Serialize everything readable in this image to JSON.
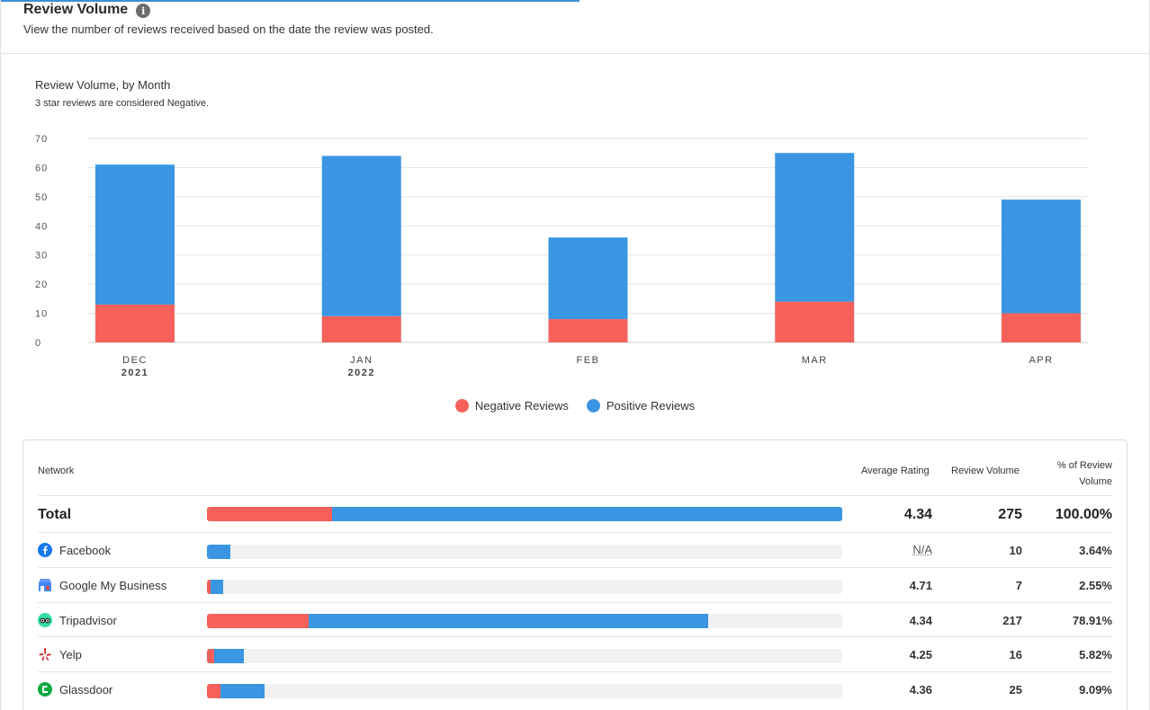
{
  "header": {
    "title": "Review Volume",
    "info_icon": "info-icon",
    "subtitle": "View the number of reviews received based on the date the review was posted."
  },
  "chart": {
    "title": "Review Volume, by Month",
    "note": "3 star reviews are considered Negative."
  },
  "chart_data": {
    "type": "bar",
    "stacked": true,
    "categories": [
      "DEC",
      "JAN",
      "FEB",
      "MAR",
      "APR"
    ],
    "category_years": [
      "2021",
      "2022",
      "",
      "",
      ""
    ],
    "series": [
      {
        "name": "Negative Reviews",
        "color": "#f5615a",
        "values": [
          13,
          9,
          8,
          14,
          10
        ]
      },
      {
        "name": "Positive Reviews",
        "color": "#3a96e2",
        "values": [
          48,
          55,
          28,
          51,
          39
        ]
      }
    ],
    "yticks": [
      0,
      10,
      20,
      30,
      40,
      50,
      60,
      70
    ],
    "ylim": [
      0,
      70
    ],
    "grid": true,
    "legend_position": "bottom-center"
  },
  "legend": [
    {
      "label": "Negative Reviews",
      "color": "#f5615a"
    },
    {
      "label": "Positive Reviews",
      "color": "#3a96e2"
    }
  ],
  "table": {
    "headers": {
      "network": "Network",
      "avg_rating": "Average Rating",
      "review_volume": "Review Volume",
      "pct_line1": "% of Review",
      "pct_line2": "Volume"
    },
    "total": {
      "name": "Total",
      "avg": "4.34",
      "volume": "275",
      "pct": "100.00%",
      "bar": {
        "negative": 0.197,
        "positive": 0.803
      }
    },
    "rows": [
      {
        "name": "Facebook",
        "icon": "facebook-icon",
        "avg": "N/A",
        "volume": "10",
        "pct": "3.64%",
        "bar": {
          "negative": 0,
          "positive": 0.0364
        }
      },
      {
        "name": "Google My Business",
        "icon": "google-my-business-icon",
        "avg": "4.71",
        "volume": "7",
        "pct": "2.55%",
        "bar": {
          "negative": 0.006,
          "positive": 0.0195
        }
      },
      {
        "name": "Tripadvisor",
        "icon": "tripadvisor-icon",
        "avg": "4.34",
        "volume": "217",
        "pct": "78.91%",
        "bar": {
          "negative": 0.16,
          "positive": 0.629
        }
      },
      {
        "name": "Yelp",
        "icon": "yelp-icon",
        "avg": "4.25",
        "volume": "16",
        "pct": "5.82%",
        "bar": {
          "negative": 0.011,
          "positive": 0.047
        }
      },
      {
        "name": "Glassdoor",
        "icon": "glassdoor-icon",
        "avg": "4.36",
        "volume": "25",
        "pct": "9.09%",
        "bar": {
          "negative": 0.021,
          "positive": 0.07
        }
      }
    ]
  }
}
